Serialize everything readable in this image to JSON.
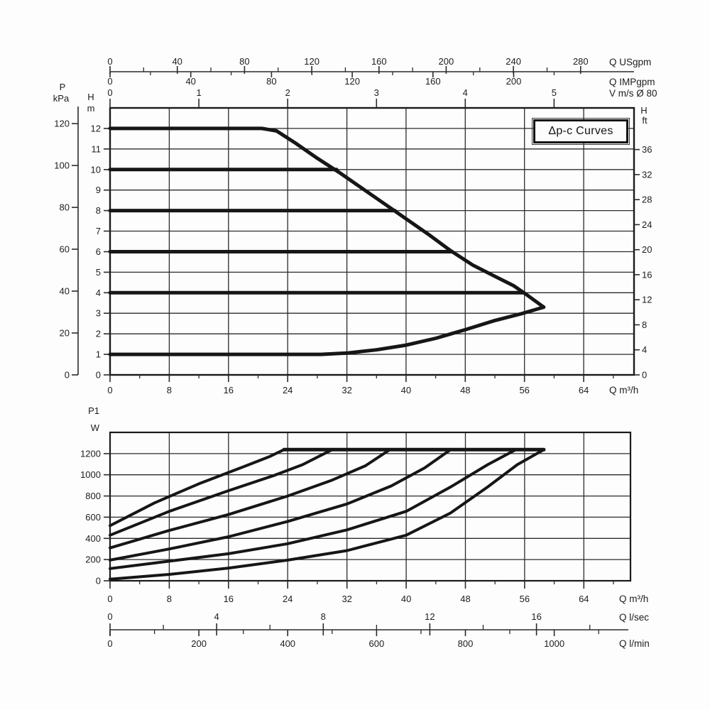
{
  "page": {
    "background": "#fdfdfd"
  },
  "colors": {
    "curve": "#161616",
    "grid": "#2b2b2b",
    "frame": "#1a1a1a",
    "text": "#1d1d1d"
  },
  "title_box": {
    "label": "Δp-c Curves"
  },
  "chart_data": [
    {
      "id": "head",
      "type": "line",
      "title": "Δp-c Curves",
      "x_axis": {
        "unit_label": "Q m³/h",
        "major": [
          0,
          8,
          16,
          24,
          32,
          40,
          48,
          56,
          64
        ],
        "minor": [
          4,
          12,
          20,
          28,
          36,
          44,
          52,
          60,
          68
        ],
        "range": [
          0,
          70.8
        ]
      },
      "y_left": {
        "name": "H",
        "unit": "m",
        "major": [
          0,
          1,
          2,
          3,
          4,
          5,
          6,
          7,
          8,
          9,
          10,
          11,
          12
        ],
        "range": [
          0,
          13
        ]
      },
      "y_outer_left": {
        "name": "P",
        "unit": "kPa",
        "major": [
          0,
          20,
          40,
          60,
          80,
          100,
          120
        ],
        "m_per_unit": 0.10197
      },
      "y_right": {
        "name": "H",
        "unit": "ft",
        "major": [
          0,
          4,
          8,
          12,
          16,
          20,
          24,
          28,
          32,
          36
        ],
        "m_per_unit": 0.3048
      },
      "top_scales": [
        {
          "unit_label": "Q USgpm",
          "major": [
            0,
            40,
            80,
            120,
            160,
            200,
            240,
            280
          ],
          "minor": [
            20,
            60,
            100,
            140,
            180,
            220,
            260
          ],
          "m3h_per_unit": 0.2271
        },
        {
          "unit_label": "Q IMPgpm",
          "major": [
            0,
            40,
            80,
            120,
            160,
            200
          ],
          "minor": [
            20,
            60,
            100,
            140,
            180,
            220
          ],
          "m3h_per_unit": 0.2727
        },
        {
          "unit_label": "V m/s Ø 80",
          "major": [
            0,
            1,
            2,
            3,
            4,
            5
          ],
          "minor": [],
          "m3h_per_unit": 12.0
        }
      ],
      "series": [
        {
          "name": "max-speed-curve",
          "width": 5,
          "points": [
            [
              0,
              12
            ],
            [
              20.5,
              12
            ],
            [
              22.5,
              11.88
            ],
            [
              25,
              11.3
            ],
            [
              28,
              10.55
            ],
            [
              31,
              9.85
            ],
            [
              34,
              9.1
            ],
            [
              37,
              8.35
            ],
            [
              40,
              7.6
            ],
            [
              43,
              6.85
            ],
            [
              46,
              6.05
            ],
            [
              49,
              5.35
            ],
            [
              52,
              4.8
            ],
            [
              54.5,
              4.35
            ],
            [
              56.5,
              3.85
            ],
            [
              58.6,
              3.3
            ]
          ]
        },
        {
          "name": "min-speed-curve",
          "width": 5,
          "points": [
            [
              0,
              1
            ],
            [
              28.5,
              1
            ],
            [
              32,
              1.06
            ],
            [
              36,
              1.22
            ],
            [
              40,
              1.45
            ],
            [
              44,
              1.78
            ],
            [
              48,
              2.2
            ],
            [
              52,
              2.65
            ],
            [
              55.5,
              2.97
            ],
            [
              58.6,
              3.3
            ]
          ]
        },
        {
          "name": "setpoint-10m",
          "width": 5,
          "points": [
            [
              0,
              10
            ],
            [
              30.6,
              10
            ]
          ]
        },
        {
          "name": "setpoint-8m",
          "width": 5,
          "points": [
            [
              0,
              8
            ],
            [
              38.5,
              8
            ]
          ]
        },
        {
          "name": "setpoint-6m",
          "width": 5,
          "points": [
            [
              0,
              6
            ],
            [
              46.2,
              6
            ]
          ]
        },
        {
          "name": "setpoint-4m",
          "width": 5,
          "points": [
            [
              0,
              4
            ],
            [
              55.9,
              4
            ]
          ]
        }
      ]
    },
    {
      "id": "power",
      "type": "line",
      "x_axis": {
        "unit_label": "Q m³/h",
        "major": [
          0,
          8,
          16,
          24,
          32,
          40,
          48,
          56,
          64
        ],
        "minor": [
          4,
          12,
          20,
          28,
          36,
          44,
          52,
          60,
          68
        ],
        "range": [
          0,
          70.3
        ]
      },
      "y_left": {
        "name": "P1",
        "unit": "W",
        "major": [
          0,
          200,
          400,
          600,
          800,
          1000,
          1200
        ],
        "range": [
          0,
          1400
        ]
      },
      "bottom_scales": [
        {
          "unit_label": "Q l/sec",
          "major": [
            0,
            4,
            8,
            12,
            16
          ],
          "minor": [
            2,
            6,
            10,
            14,
            18
          ],
          "m3h_per_unit": 3.6
        },
        {
          "unit_label": "Q l/min",
          "major": [
            0,
            200,
            400,
            600,
            800,
            1000
          ],
          "minor": [
            100,
            300,
            500,
            700,
            900,
            1100
          ],
          "m3h_per_unit": 0.06
        }
      ],
      "series": [
        {
          "name": "max-power-line",
          "width": 5,
          "points": [
            [
              23.5,
              1237
            ],
            [
              58.6,
              1237
            ]
          ]
        },
        {
          "name": "power-12m",
          "width": 4,
          "points": [
            [
              0,
              520
            ],
            [
              6,
              735
            ],
            [
              12,
              915
            ],
            [
              18,
              1075
            ],
            [
              21.5,
              1170
            ],
            [
              23.5,
              1237
            ]
          ]
        },
        {
          "name": "power-10m",
          "width": 4,
          "points": [
            [
              0,
              430
            ],
            [
              8,
              655
            ],
            [
              16,
              850
            ],
            [
              22,
              990
            ],
            [
              26,
              1095
            ],
            [
              30,
              1237
            ]
          ]
        },
        {
          "name": "power-8m",
          "width": 4,
          "points": [
            [
              0,
              310
            ],
            [
              8,
              475
            ],
            [
              16,
              625
            ],
            [
              24,
              800
            ],
            [
              30,
              950
            ],
            [
              34.5,
              1085
            ],
            [
              37.8,
              1237
            ]
          ]
        },
        {
          "name": "power-6m",
          "width": 4,
          "points": [
            [
              0,
              195
            ],
            [
              8,
              300
            ],
            [
              16,
              415
            ],
            [
              24,
              560
            ],
            [
              32,
              725
            ],
            [
              38,
              895
            ],
            [
              42.5,
              1065
            ],
            [
              46,
              1237
            ]
          ]
        },
        {
          "name": "power-4m",
          "width": 4,
          "points": [
            [
              0,
              115
            ],
            [
              8,
              185
            ],
            [
              16,
              255
            ],
            [
              24,
              350
            ],
            [
              32,
              480
            ],
            [
              40,
              655
            ],
            [
              46,
              885
            ],
            [
              51,
              1095
            ],
            [
              54.8,
              1237
            ]
          ]
        },
        {
          "name": "power-1m",
          "width": 4,
          "points": [
            [
              0,
              15
            ],
            [
              8,
              60
            ],
            [
              16,
              120
            ],
            [
              24,
              195
            ],
            [
              32,
              285
            ],
            [
              40,
              430
            ],
            [
              46,
              640
            ],
            [
              51,
              885
            ],
            [
              55,
              1095
            ],
            [
              58.6,
              1237
            ]
          ]
        }
      ]
    }
  ]
}
